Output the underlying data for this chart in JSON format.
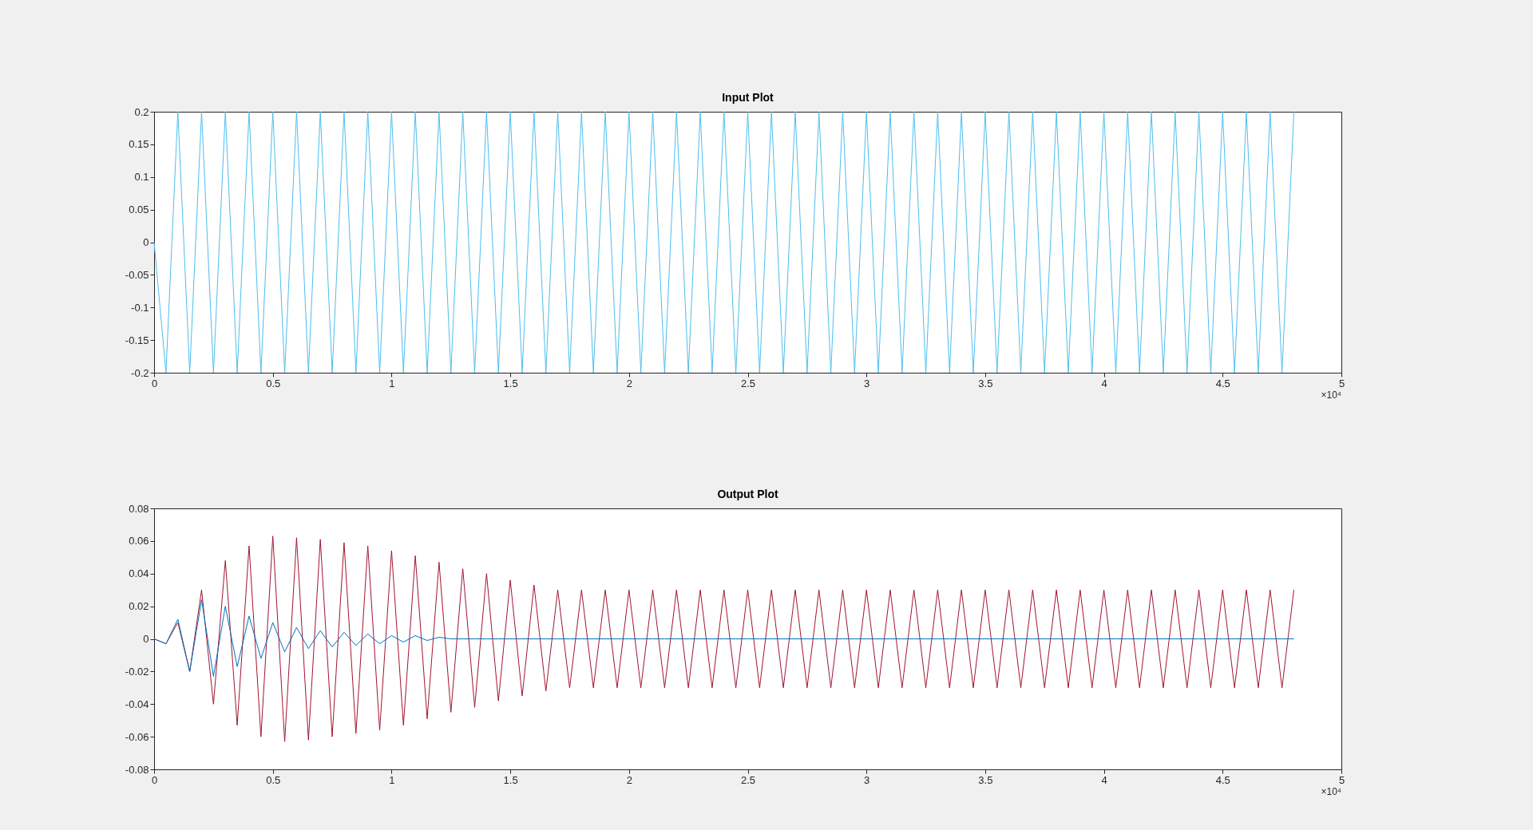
{
  "chart_data": [
    {
      "type": "line",
      "title": "Input Plot",
      "xlim": [
        0,
        5
      ],
      "xticks": [
        0,
        0.5,
        1,
        1.5,
        2,
        2.5,
        3,
        3.5,
        4,
        4.5,
        5
      ],
      "ylim": [
        -0.2,
        0.2
      ],
      "yticks": [
        -0.2,
        -0.15,
        -0.1,
        -0.05,
        0,
        0.05,
        0.1,
        0.15,
        0.2
      ],
      "grid": false,
      "annotations": [
        "×10⁴"
      ],
      "x": [
        0,
        0.05,
        0.1,
        0.15,
        0.2,
        0.25,
        0.3,
        0.35,
        0.4,
        0.45,
        0.5,
        0.55,
        0.6,
        0.65,
        0.7,
        0.75,
        0.8,
        0.85,
        0.9,
        0.95,
        1,
        1.05,
        1.1,
        1.15,
        1.2,
        1.25,
        1.3,
        1.35,
        1.4,
        1.45,
        1.5,
        1.55,
        1.6,
        1.65,
        1.7,
        1.75,
        1.8,
        1.85,
        1.9,
        1.95,
        2,
        2.05,
        2.1,
        2.15,
        2.2,
        2.25,
        2.3,
        2.35,
        2.4,
        2.45,
        2.5,
        2.55,
        2.6,
        2.65,
        2.7,
        2.75,
        2.8,
        2.85,
        2.9,
        2.95,
        3,
        3.05,
        3.1,
        3.15,
        3.2,
        3.25,
        3.3,
        3.35,
        3.4,
        3.45,
        3.5,
        3.55,
        3.6,
        3.65,
        3.7,
        3.75,
        3.8,
        3.85,
        3.9,
        3.95,
        4,
        4.05,
        4.1,
        4.15,
        4.2,
        4.25,
        4.3,
        4.35,
        4.4,
        4.45,
        4.5,
        4.55,
        4.6,
        4.65,
        4.7,
        4.75,
        4.8
      ],
      "series": [
        {
          "color": "#4dbeee",
          "values": [
            0,
            -0.2,
            0.2,
            -0.2,
            0.2,
            -0.2,
            0.2,
            -0.2,
            0.2,
            -0.2,
            0.2,
            -0.2,
            0.2,
            -0.2,
            0.2,
            -0.2,
            0.2,
            -0.2,
            0.2,
            -0.2,
            0.2,
            -0.2,
            0.2,
            -0.2,
            0.2,
            -0.2,
            0.2,
            -0.2,
            0.2,
            -0.2,
            0.2,
            -0.2,
            0.2,
            -0.2,
            0.2,
            -0.2,
            0.2,
            -0.2,
            0.2,
            -0.2,
            0.2,
            -0.2,
            0.2,
            -0.2,
            0.2,
            -0.2,
            0.2,
            -0.2,
            0.2,
            -0.2,
            0.2,
            -0.2,
            0.2,
            -0.2,
            0.2,
            -0.2,
            0.2,
            -0.2,
            0.2,
            -0.2,
            0.2,
            -0.2,
            0.2,
            -0.2,
            0.2,
            -0.2,
            0.2,
            -0.2,
            0.2,
            -0.2,
            0.2,
            -0.2,
            0.2,
            -0.2,
            0.2,
            -0.2,
            0.2,
            -0.2,
            0.2,
            -0.2,
            0.2,
            -0.2,
            0.2,
            -0.2,
            0.2,
            -0.2,
            0.2,
            -0.2,
            0.2,
            -0.2,
            0.2,
            -0.2,
            0.2,
            -0.2,
            0.2,
            -0.2,
            0.2
          ]
        }
      ]
    },
    {
      "type": "line",
      "title": "Output Plot",
      "xlim": [
        0,
        5
      ],
      "xticks": [
        0,
        0.5,
        1,
        1.5,
        2,
        2.5,
        3,
        3.5,
        4,
        4.5,
        5
      ],
      "ylim": [
        -0.08,
        0.08
      ],
      "yticks": [
        -0.08,
        -0.06,
        -0.04,
        -0.02,
        0,
        0.02,
        0.04,
        0.06,
        0.08
      ],
      "grid": false,
      "annotations": [
        "×10⁴"
      ],
      "x": [
        0,
        0.05,
        0.1,
        0.15,
        0.2,
        0.25,
        0.3,
        0.35,
        0.4,
        0.45,
        0.5,
        0.55,
        0.6,
        0.65,
        0.7,
        0.75,
        0.8,
        0.85,
        0.9,
        0.95,
        1,
        1.05,
        1.1,
        1.15,
        1.2,
        1.25,
        1.3,
        1.35,
        1.4,
        1.45,
        1.5,
        1.55,
        1.6,
        1.65,
        1.7,
        1.75,
        1.8,
        1.85,
        1.9,
        1.95,
        2,
        2.05,
        2.1,
        2.15,
        2.2,
        2.25,
        2.3,
        2.35,
        2.4,
        2.45,
        2.5,
        2.55,
        2.6,
        2.65,
        2.7,
        2.75,
        2.8,
        2.85,
        2.9,
        2.95,
        3,
        3.05,
        3.1,
        3.15,
        3.2,
        3.25,
        3.3,
        3.35,
        3.4,
        3.45,
        3.5,
        3.55,
        3.6,
        3.65,
        3.7,
        3.75,
        3.8,
        3.85,
        3.9,
        3.95,
        4,
        4.05,
        4.1,
        4.15,
        4.2,
        4.25,
        4.3,
        4.35,
        4.4,
        4.45,
        4.5,
        4.55,
        4.6,
        4.65,
        4.7,
        4.75,
        4.8
      ],
      "series": [
        {
          "color": "#a2142f",
          "values": [
            0,
            -0.003,
            0.01,
            -0.02,
            0.03,
            -0.04,
            0.048,
            -0.053,
            0.057,
            -0.06,
            0.063,
            -0.063,
            0.062,
            -0.062,
            0.061,
            -0.06,
            0.059,
            -0.058,
            0.057,
            -0.056,
            0.054,
            -0.053,
            0.051,
            -0.049,
            0.047,
            -0.045,
            0.043,
            -0.042,
            0.04,
            -0.038,
            0.036,
            -0.035,
            0.033,
            -0.032,
            0.03,
            -0.03,
            0.03,
            -0.03,
            0.03,
            -0.03,
            0.03,
            -0.03,
            0.03,
            -0.03,
            0.03,
            -0.03,
            0.03,
            -0.03,
            0.03,
            -0.03,
            0.03,
            -0.03,
            0.03,
            -0.03,
            0.03,
            -0.03,
            0.03,
            -0.03,
            0.03,
            -0.03,
            0.03,
            -0.03,
            0.03,
            -0.03,
            0.03,
            -0.03,
            0.03,
            -0.03,
            0.03,
            -0.03,
            0.03,
            -0.03,
            0.03,
            -0.03,
            0.03,
            -0.03,
            0.03,
            -0.03,
            0.03,
            -0.03,
            0.03,
            -0.03,
            0.03,
            -0.03,
            0.03,
            -0.03,
            0.03,
            -0.03,
            0.03,
            -0.03,
            0.03,
            -0.03,
            0.03,
            -0.03,
            0.03,
            -0.03,
            0.03
          ]
        },
        {
          "color": "#0072bd",
          "values": [
            0,
            -0.003,
            0.012,
            -0.02,
            0.024,
            -0.023,
            0.02,
            -0.017,
            0.014,
            -0.012,
            0.01,
            -0.008,
            0.007,
            -0.006,
            0.005,
            -0.005,
            0.004,
            -0.004,
            0.003,
            -0.003,
            0.002,
            -0.002,
            0.002,
            -0.001,
            0.001,
            0,
            0,
            0,
            0,
            0,
            0,
            0,
            0,
            0,
            0,
            0,
            0,
            0,
            0,
            0,
            0,
            0,
            0,
            0,
            0,
            0,
            0,
            0,
            0,
            0,
            0,
            0,
            0,
            0,
            0,
            0,
            0,
            0,
            0,
            0,
            0,
            0,
            0,
            0,
            0,
            0,
            0,
            0,
            0,
            0,
            0,
            0,
            0,
            0,
            0,
            0,
            0,
            0,
            0,
            0,
            0,
            0,
            0,
            0,
            0,
            0,
            0,
            0,
            0,
            0,
            0,
            0,
            0,
            0,
            0,
            0,
            0
          ]
        }
      ]
    }
  ]
}
